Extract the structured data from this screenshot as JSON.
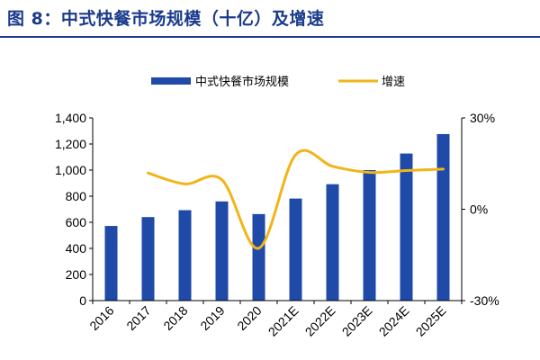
{
  "figure": {
    "title": "图 8：中式快餐市场规模（十亿）及增速"
  },
  "chart_data": {
    "type": "bar",
    "categories": [
      "2016",
      "2017",
      "2018",
      "2019",
      "2020",
      "2021E",
      "2022E",
      "2023E",
      "2024E",
      "2025E"
    ],
    "series": [
      {
        "name": "中式快餐市场规模",
        "kind": "bar",
        "axis": "left",
        "color": "#1f4aa8",
        "values": [
          572,
          640,
          693,
          760,
          663,
          782,
          892,
          1000,
          1127,
          1276
        ]
      },
      {
        "name": "增速",
        "kind": "line",
        "axis": "right",
        "color": "#f2b418",
        "values": [
          null,
          11.9,
          8.3,
          9.7,
          -12.8,
          17.9,
          14.1,
          12.1,
          12.7,
          13.2
        ]
      }
    ],
    "left_axis": {
      "min": 0,
      "max": 1400,
      "step": 200,
      "tick_labels": [
        "0",
        "200",
        "400",
        "600",
        "800",
        "1,000",
        "1,200",
        "1,400"
      ]
    },
    "right_axis": {
      "min": -30,
      "max": 30,
      "tick_values": [
        -30,
        0,
        30
      ],
      "tick_labels": [
        "-30%",
        "0%",
        "30%"
      ]
    },
    "legend_position": "top-center",
    "grid": false
  }
}
